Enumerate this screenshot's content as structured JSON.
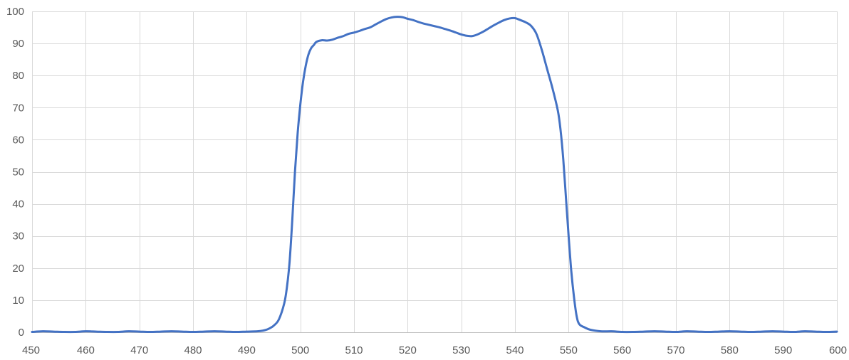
{
  "chart_data": {
    "type": "line",
    "title": "",
    "xlabel": "",
    "ylabel": "",
    "xlim": [
      450,
      600
    ],
    "ylim": [
      0,
      100
    ],
    "x_ticks": [
      450,
      460,
      470,
      480,
      490,
      500,
      510,
      520,
      530,
      540,
      550,
      560,
      570,
      580,
      590,
      600
    ],
    "y_ticks": [
      0,
      10,
      20,
      30,
      40,
      50,
      60,
      70,
      80,
      90,
      100
    ],
    "x_tick_labels": [
      "450",
      "460",
      "470",
      "480",
      "490",
      "500",
      "510",
      "520",
      "530",
      "540",
      "550",
      "560",
      "570",
      "580",
      "590",
      "600"
    ],
    "y_tick_labels": [
      "0",
      "10",
      "20",
      "30",
      "40",
      "50",
      "60",
      "70",
      "80",
      "90",
      "100"
    ],
    "grid": true,
    "legend": "none",
    "colors": {
      "series": "#4472c4",
      "grid": "#d9d9d9",
      "tick_text": "#595959"
    },
    "series": [
      {
        "x": [
          450,
          452,
          454,
          456,
          458,
          460,
          462,
          464,
          466,
          468,
          470,
          472,
          474,
          476,
          478,
          480,
          482,
          484,
          486,
          488,
          490,
          492,
          493,
          494,
          495,
          496,
          497,
          497.5,
          498,
          498.5,
          499,
          499.5,
          500,
          500.5,
          501,
          501.5,
          502,
          502.5,
          503,
          504,
          505,
          506,
          507,
          508,
          509,
          510,
          511,
          512,
          513,
          514,
          515,
          516,
          517,
          518,
          519,
          520,
          521,
          522,
          523,
          524,
          525,
          526,
          527,
          528,
          529,
          530,
          531,
          532,
          533,
          534,
          535,
          536,
          537,
          538,
          539,
          540,
          541,
          542,
          543,
          544,
          545,
          546,
          547,
          548,
          548.5,
          549,
          549.5,
          550,
          550.5,
          551,
          551.5,
          552,
          553,
          554,
          556,
          558,
          560,
          562,
          564,
          566,
          568,
          570,
          572,
          574,
          576,
          578,
          580,
          582,
          584,
          586,
          588,
          590,
          592,
          594,
          596,
          598,
          600
        ],
        "y": [
          0.1,
          0.3,
          0.2,
          0.1,
          0.1,
          0.3,
          0.2,
          0.1,
          0.1,
          0.3,
          0.2,
          0.1,
          0.2,
          0.3,
          0.2,
          0.1,
          0.2,
          0.3,
          0.2,
          0.1,
          0.2,
          0.3,
          0.5,
          1.0,
          2.0,
          4.0,
          9.0,
          14.0,
          22.0,
          35.0,
          50.0,
          62.0,
          71.0,
          78.0,
          83.0,
          86.5,
          88.5,
          89.5,
          90.5,
          91.0,
          90.9,
          91.2,
          91.8,
          92.3,
          93.0,
          93.4,
          93.9,
          94.5,
          95.0,
          95.9,
          96.8,
          97.6,
          98.1,
          98.3,
          98.2,
          97.7,
          97.3,
          96.7,
          96.2,
          95.8,
          95.4,
          95.0,
          94.5,
          94.0,
          93.4,
          92.8,
          92.4,
          92.3,
          92.8,
          93.6,
          94.6,
          95.6,
          96.5,
          97.3,
          97.8,
          97.9,
          97.3,
          96.6,
          95.5,
          93.0,
          88.0,
          82.0,
          76.0,
          69.0,
          63.0,
          54.0,
          42.0,
          30.0,
          19.0,
          11.0,
          5.0,
          2.5,
          1.5,
          0.8,
          0.3,
          0.3,
          0.1,
          0.1,
          0.2,
          0.3,
          0.2,
          0.1,
          0.3,
          0.2,
          0.1,
          0.2,
          0.3,
          0.2,
          0.1,
          0.2,
          0.3,
          0.2,
          0.1,
          0.3,
          0.2,
          0.1,
          0.2
        ]
      }
    ]
  }
}
